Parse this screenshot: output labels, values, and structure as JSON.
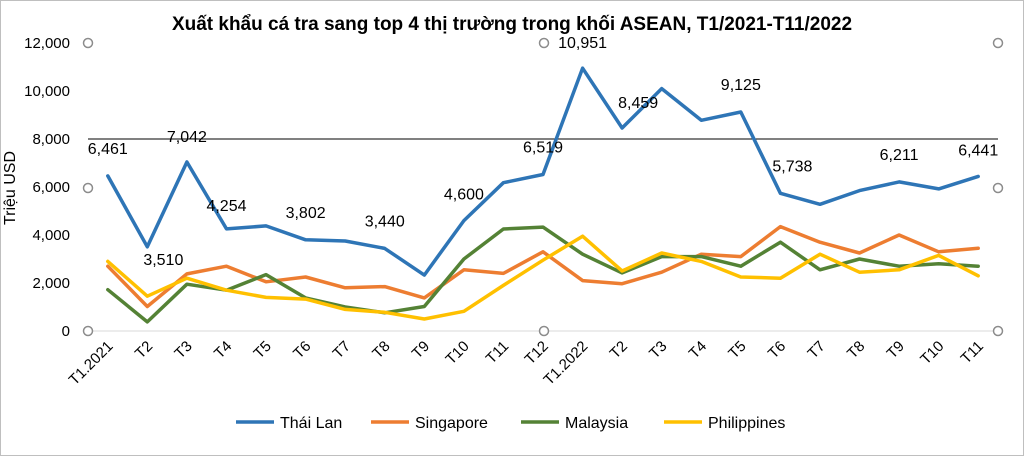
{
  "chart_data": {
    "type": "line",
    "title": "Xuất khẩu cá tra sang top 4 thị trường trong khối ASEAN, T1/2021-T11/2022",
    "ylabel": "Triệu USD",
    "xlabel": "",
    "ylim": [
      0,
      12000
    ],
    "yticks": [
      "0",
      "2,000",
      "4,000",
      "6,000",
      "8,000",
      "10,000",
      "12,000"
    ],
    "categories": [
      "T1.2021",
      "T2",
      "T3",
      "T4",
      "T5",
      "T6",
      "T7",
      "T8",
      "T9",
      "T10",
      "T11",
      "T12",
      "T1.2022",
      "T2",
      "T3",
      "T4",
      "T5",
      "T6",
      "T7",
      "T8",
      "T9",
      "T10",
      "T11"
    ],
    "legend_position": "bottom",
    "series": [
      {
        "name": "Thái Lan",
        "color": "#2E75B6",
        "values": [
          6461,
          3510,
          7042,
          4254,
          4380,
          3802,
          3750,
          3440,
          2330,
          4600,
          6180,
          6519,
          10951,
          8459,
          10100,
          8780,
          9125,
          5738,
          5280,
          5850,
          6211,
          5920,
          6441
        ]
      },
      {
        "name": "Singapore",
        "color": "#ED7D31",
        "values": [
          2700,
          1020,
          2380,
          2700,
          2050,
          2250,
          1800,
          1850,
          1380,
          2550,
          2400,
          3300,
          2100,
          1970,
          2450,
          3200,
          3100,
          4350,
          3700,
          3250,
          4000,
          3300,
          3450
        ]
      },
      {
        "name": "Malaysia",
        "color": "#548235",
        "values": [
          1720,
          380,
          1950,
          1700,
          2350,
          1380,
          1000,
          760,
          1020,
          3000,
          4250,
          4330,
          3200,
          2420,
          3100,
          3100,
          2700,
          3700,
          2550,
          3000,
          2700,
          2800,
          2700
        ]
      },
      {
        "name": "Philippines",
        "color": "#FFC000",
        "values": [
          2900,
          1450,
          2200,
          1700,
          1400,
          1330,
          900,
          780,
          500,
          820,
          1900,
          2950,
          3950,
          2500,
          3250,
          2900,
          2250,
          2200,
          3200,
          2450,
          2550,
          3150,
          2300
        ]
      }
    ],
    "data_labels": [
      {
        "series": 0,
        "index": 0,
        "text": "6,461"
      },
      {
        "series": 0,
        "index": 1,
        "text": "3,510"
      },
      {
        "series": 0,
        "index": 2,
        "text": "7,042"
      },
      {
        "series": 0,
        "index": 3,
        "text": "4,254"
      },
      {
        "series": 0,
        "index": 5,
        "text": "3,802"
      },
      {
        "series": 0,
        "index": 7,
        "text": "3,440"
      },
      {
        "series": 0,
        "index": 9,
        "text": "4,600"
      },
      {
        "series": 0,
        "index": 11,
        "text": "6,519"
      },
      {
        "series": 0,
        "index": 12,
        "text": "10,951"
      },
      {
        "series": 0,
        "index": 13,
        "text": "8,459"
      },
      {
        "series": 0,
        "index": 16,
        "text": "9,125"
      },
      {
        "series": 0,
        "index": 17,
        "text": "5,738"
      },
      {
        "series": 0,
        "index": 20,
        "text": "6,211"
      },
      {
        "series": 0,
        "index": 22,
        "text": "6,441"
      }
    ]
  }
}
